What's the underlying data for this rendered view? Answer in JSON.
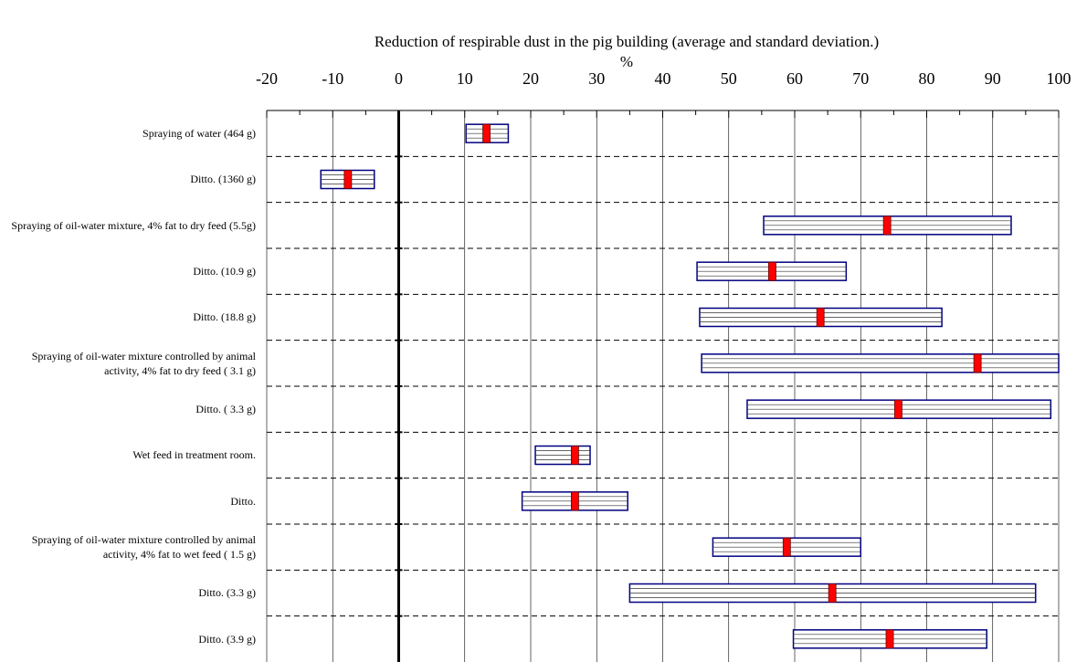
{
  "chart_data": {
    "type": "range-bar",
    "title": "Reduction of respirable dust in the pig building (average and standard deviation.)",
    "x_label": "%",
    "categories": [
      "Spraying of water  (464 g)",
      "Ditto. (1360 g)",
      "Spraying of oil-water mixture, 4% fat to dry feed (5.5g)",
      "Ditto. (10.9 g)",
      "Ditto. (18.8 g)",
      "Spraying of oil-water mixture controlled by animal activity, 4% fat to dry feed  ( 3.1 g)",
      "Ditto.  ( 3.3 g)",
      "Wet feed in treatment room.",
      "Ditto.",
      "Spraying of oil-water mixture controlled by animal activity, 4% fat to wet feed ( 1.5 g)",
      "Ditto.   (3.3 g)",
      "Ditto.   (3.9 g)"
    ],
    "values": [
      13.3,
      -7.7,
      74.0,
      56.6,
      63.9,
      87.7,
      75.7,
      26.7,
      26.7,
      58.8,
      65.7,
      74.4
    ],
    "low": [
      10.2,
      -11.8,
      55.3,
      45.2,
      45.6,
      45.9,
      52.8,
      20.7,
      18.7,
      47.6,
      35.0,
      59.8
    ],
    "high": [
      16.6,
      -3.7,
      92.8,
      67.8,
      82.3,
      100,
      98.8,
      29.0,
      34.7,
      70.0,
      96.5,
      89.1
    ],
    "bar_color": "#000080",
    "mean_color": "#ff0000",
    "xlim": [
      -20,
      100
    ],
    "xticks": [
      -20,
      -10,
      0,
      10,
      20,
      30,
      40,
      50,
      60,
      70,
      80,
      90,
      100
    ],
    "grid": true
  }
}
